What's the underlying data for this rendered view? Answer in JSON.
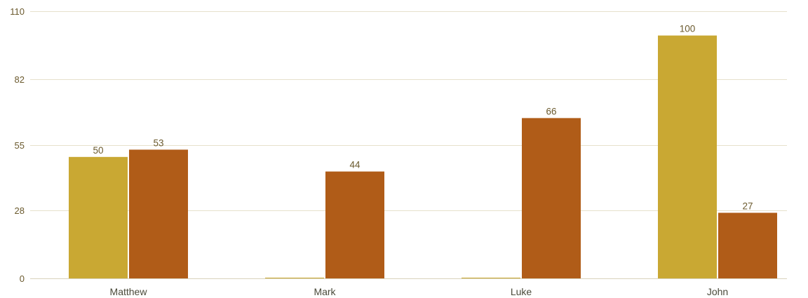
{
  "chart_data": {
    "type": "bar",
    "title": "",
    "xlabel": "",
    "ylabel": "",
    "ylim": [
      0,
      110
    ],
    "yticks": [
      0,
      28,
      55,
      82,
      110
    ],
    "grid": true,
    "legend": "none",
    "categories": [
      "Matthew",
      "Mark",
      "Luke",
      "John"
    ],
    "series": [
      {
        "values": [
          50,
          0,
          0,
          100
        ],
        "color": "#c9a833",
        "labels": [
          "50",
          "",
          "",
          "100"
        ]
      },
      {
        "values": [
          53,
          44,
          66,
          27
        ],
        "color": "#b05c18",
        "labels": [
          "53",
          "44",
          "66",
          "27"
        ]
      }
    ]
  }
}
